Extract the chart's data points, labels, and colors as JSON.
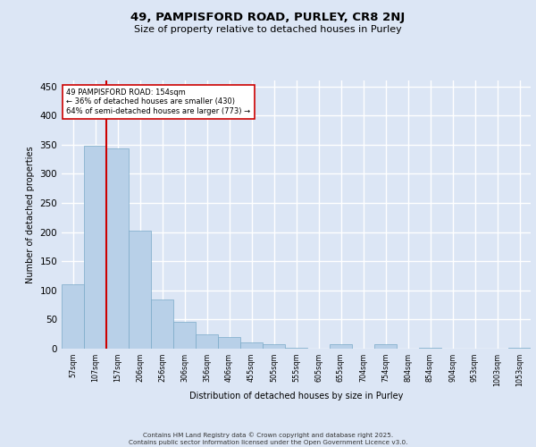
{
  "title_line1": "49, PAMPISFORD ROAD, PURLEY, CR8 2NJ",
  "title_line2": "Size of property relative to detached houses in Purley",
  "xlabel": "Distribution of detached houses by size in Purley",
  "ylabel": "Number of detached properties",
  "categories": [
    "57sqm",
    "107sqm",
    "157sqm",
    "206sqm",
    "256sqm",
    "306sqm",
    "356sqm",
    "406sqm",
    "455sqm",
    "505sqm",
    "555sqm",
    "605sqm",
    "655sqm",
    "704sqm",
    "754sqm",
    "804sqm",
    "854sqm",
    "904sqm",
    "953sqm",
    "1003sqm",
    "1053sqm"
  ],
  "values": [
    110,
    348,
    343,
    203,
    85,
    46,
    25,
    20,
    10,
    7,
    2,
    0,
    7,
    0,
    7,
    0,
    2,
    0,
    0,
    0,
    2
  ],
  "bar_color": "#b8d0e8",
  "bar_edge_color": "#7aaac8",
  "fig_background_color": "#dce6f5",
  "ax_background_color": "#dce6f5",
  "grid_color": "#ffffff",
  "vline_color": "#cc0000",
  "vline_x_index": 2,
  "annotation_text": "49 PAMPISFORD ROAD: 154sqm\n← 36% of detached houses are smaller (430)\n64% of semi-detached houses are larger (773) →",
  "annotation_box_facecolor": "#ffffff",
  "annotation_box_edgecolor": "#cc0000",
  "footer_text": "Contains HM Land Registry data © Crown copyright and database right 2025.\nContains public sector information licensed under the Open Government Licence v3.0.",
  "ylim": [
    0,
    460
  ],
  "yticks": [
    0,
    50,
    100,
    150,
    200,
    250,
    300,
    350,
    400,
    450
  ]
}
